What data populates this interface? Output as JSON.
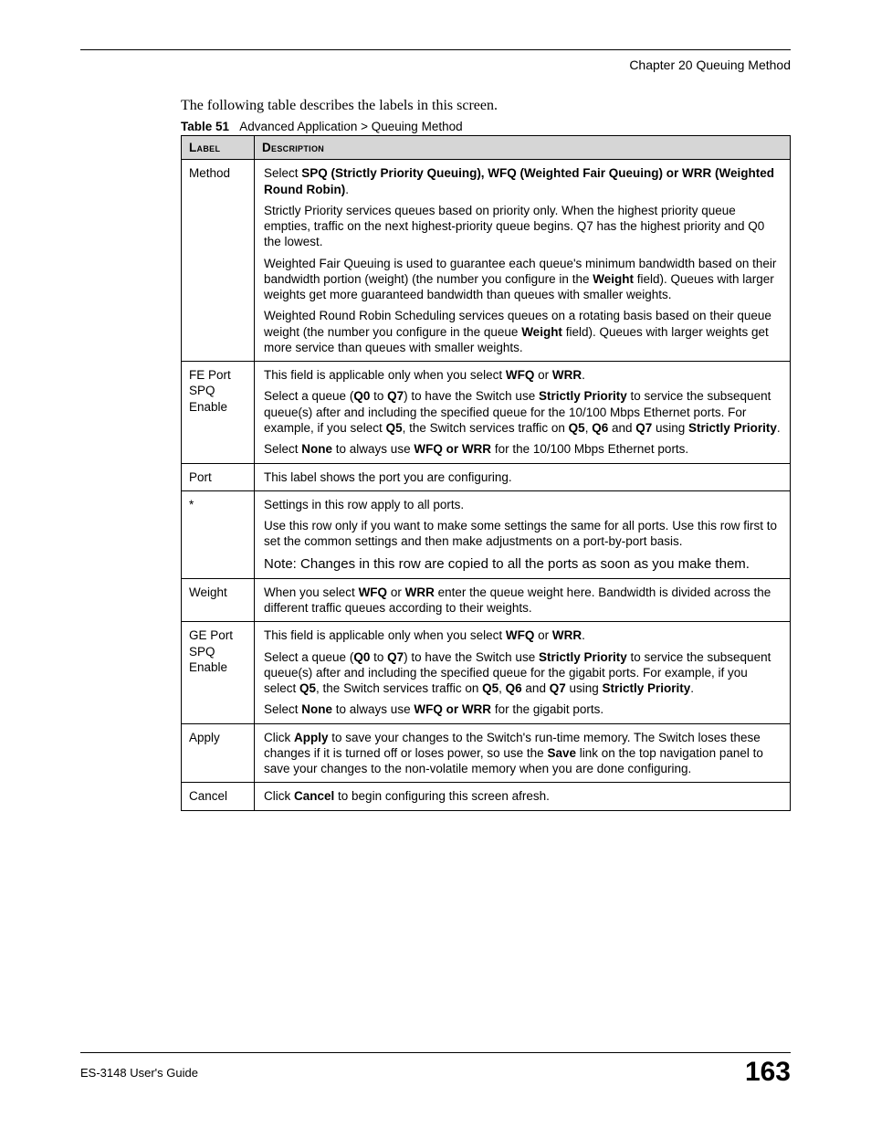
{
  "header": {
    "chapter_line": "Chapter 20 Queuing Method"
  },
  "intro_text": "The following table describes the labels in this screen.",
  "table_caption": {
    "prefix": "Table 51",
    "title": "Advanced Application > Queuing Method"
  },
  "table": {
    "header": {
      "label": "Label",
      "description": "Description"
    },
    "rows": [
      {
        "label": "Method",
        "paras": [
          {
            "segments": [
              {
                "t": "Select ",
                "b": false
              },
              {
                "t": "SPQ (Strictly Priority Queuing), WFQ (Weighted Fair Queuing) or WRR (Weighted Round Robin)",
                "b": true
              },
              {
                "t": ".",
                "b": false
              }
            ]
          },
          {
            "segments": [
              {
                "t": "Strictly Priority services queues based on priority only. When the highest priority queue empties, traffic on the next highest-priority queue begins. Q7 has the highest priority and Q0 the lowest.",
                "b": false
              }
            ]
          },
          {
            "segments": [
              {
                "t": "Weighted Fair Queuing is used to guarantee each queue's minimum bandwidth based on their bandwidth portion (weight) (the number you configure in the ",
                "b": false
              },
              {
                "t": "Weight",
                "b": true
              },
              {
                "t": " field). Queues with larger weights get more guaranteed bandwidth than queues with smaller weights.",
                "b": false
              }
            ]
          },
          {
            "segments": [
              {
                "t": "Weighted Round Robin Scheduling services queues on a rotating basis based on their queue weight (the number you configure in the queue ",
                "b": false
              },
              {
                "t": "Weight",
                "b": true
              },
              {
                "t": " field). Queues with larger weights get more service than queues with smaller weights.",
                "b": false
              }
            ]
          }
        ]
      },
      {
        "label": "FE Port SPQ Enable",
        "paras": [
          {
            "segments": [
              {
                "t": "This field is applicable only when you select ",
                "b": false
              },
              {
                "t": "WFQ",
                "b": true
              },
              {
                "t": " or ",
                "b": false
              },
              {
                "t": "WRR",
                "b": true
              },
              {
                "t": ".",
                "b": false
              }
            ]
          },
          {
            "segments": [
              {
                "t": "Select a queue (",
                "b": false
              },
              {
                "t": "Q0",
                "b": true
              },
              {
                "t": " to ",
                "b": false
              },
              {
                "t": "Q7",
                "b": true
              },
              {
                "t": ") to have the Switch use ",
                "b": false
              },
              {
                "t": "Strictly Priority",
                "b": true
              },
              {
                "t": " to service the subsequent queue(s) after and including the specified queue for the 10/100 Mbps Ethernet ports. For example, if you select ",
                "b": false
              },
              {
                "t": "Q5",
                "b": true
              },
              {
                "t": ", the Switch services traffic on ",
                "b": false
              },
              {
                "t": "Q5",
                "b": true
              },
              {
                "t": ", ",
                "b": false
              },
              {
                "t": "Q6",
                "b": true
              },
              {
                "t": " and ",
                "b": false
              },
              {
                "t": "Q7",
                "b": true
              },
              {
                "t": " using ",
                "b": false
              },
              {
                "t": "Strictly Priority",
                "b": true
              },
              {
                "t": ".",
                "b": false
              }
            ]
          },
          {
            "segments": [
              {
                "t": "Select ",
                "b": false
              },
              {
                "t": "None",
                "b": true
              },
              {
                "t": " to always use ",
                "b": false
              },
              {
                "t": "WFQ or WRR",
                "b": true
              },
              {
                "t": " for the 10/100 Mbps Ethernet ports.",
                "b": false
              }
            ]
          }
        ]
      },
      {
        "label": "Port",
        "paras": [
          {
            "segments": [
              {
                "t": "This label shows the port you are configuring.",
                "b": false
              }
            ]
          }
        ]
      },
      {
        "label": "*",
        "paras": [
          {
            "segments": [
              {
                "t": "Settings in this row apply to all ports.",
                "b": false
              }
            ]
          },
          {
            "segments": [
              {
                "t": "Use this row only if you want to make some settings the same for all ports. Use this row first to set the common settings and then make adjustments on a port-by-port basis.",
                "b": false
              }
            ]
          }
        ],
        "note": "Note: Changes in this row are copied to all the ports as soon as you make them."
      },
      {
        "label": "Weight",
        "paras": [
          {
            "segments": [
              {
                "t": "When you select ",
                "b": false
              },
              {
                "t": "WFQ",
                "b": true
              },
              {
                "t": " or ",
                "b": false
              },
              {
                "t": "WRR",
                "b": true
              },
              {
                "t": " enter the queue weight here. Bandwidth is divided across the different traffic queues according to their weights.",
                "b": false
              }
            ]
          }
        ]
      },
      {
        "label": "GE Port SPQ Enable",
        "paras": [
          {
            "segments": [
              {
                "t": "This field is applicable only when you select ",
                "b": false
              },
              {
                "t": "WFQ",
                "b": true
              },
              {
                "t": " or ",
                "b": false
              },
              {
                "t": "WRR",
                "b": true
              },
              {
                "t": ".",
                "b": false
              }
            ]
          },
          {
            "segments": [
              {
                "t": "Select a queue (",
                "b": false
              },
              {
                "t": "Q0",
                "b": true
              },
              {
                "t": " to ",
                "b": false
              },
              {
                "t": "Q7",
                "b": true
              },
              {
                "t": ") to have the Switch use ",
                "b": false
              },
              {
                "t": "Strictly Priority",
                "b": true
              },
              {
                "t": " to service the subsequent queue(s) after and including the specified queue for the gigabit ports. For example, if you select ",
                "b": false
              },
              {
                "t": "Q5",
                "b": true
              },
              {
                "t": ", the Switch services traffic on ",
                "b": false
              },
              {
                "t": "Q5",
                "b": true
              },
              {
                "t": ", ",
                "b": false
              },
              {
                "t": "Q6",
                "b": true
              },
              {
                "t": " and ",
                "b": false
              },
              {
                "t": "Q7",
                "b": true
              },
              {
                "t": " using ",
                "b": false
              },
              {
                "t": "Strictly Priority",
                "b": true
              },
              {
                "t": ".",
                "b": false
              }
            ]
          },
          {
            "segments": [
              {
                "t": "Select ",
                "b": false
              },
              {
                "t": "None",
                "b": true
              },
              {
                "t": " to always use ",
                "b": false
              },
              {
                "t": "WFQ or WRR",
                "b": true
              },
              {
                "t": " for the gigabit ports.",
                "b": false
              }
            ]
          }
        ]
      },
      {
        "label": "Apply",
        "paras": [
          {
            "segments": [
              {
                "t": "Click ",
                "b": false
              },
              {
                "t": "Apply",
                "b": true
              },
              {
                "t": " to save your changes to the Switch's run-time memory. The Switch loses these changes if it is turned off or loses power, so use the ",
                "b": false
              },
              {
                "t": "Save",
                "b": true
              },
              {
                "t": " link on the top navigation panel to save your changes to the non-volatile memory when you are done configuring.",
                "b": false
              }
            ]
          }
        ]
      },
      {
        "label": "Cancel",
        "paras": [
          {
            "segments": [
              {
                "t": "Click ",
                "b": false
              },
              {
                "t": "Cancel",
                "b": true
              },
              {
                "t": " to begin configuring this screen afresh.",
                "b": false
              }
            ]
          }
        ]
      }
    ]
  },
  "footer": {
    "guide": "ES-3148 User's Guide",
    "page": "163"
  }
}
